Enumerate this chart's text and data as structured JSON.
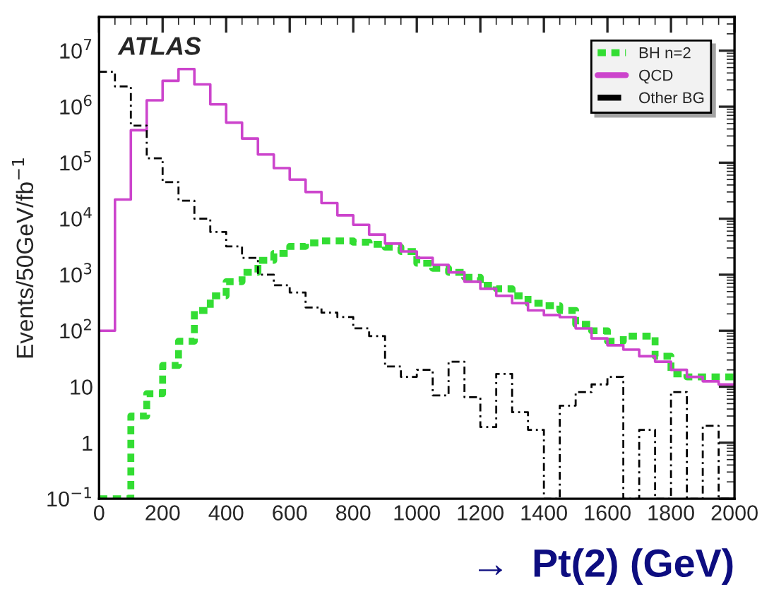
{
  "chart_data": {
    "type": "histogram",
    "xlabel": "→  Pt(2) (GeV)",
    "ylabel": "Events/50GeV/fb$^{−1}$",
    "annotations": [
      "ATLAS"
    ],
    "bins": [
      0,
      50,
      100,
      150,
      200,
      250,
      300,
      350,
      400,
      450,
      500,
      550,
      600,
      650,
      700,
      750,
      800,
      850,
      900,
      950,
      1000,
      1050,
      1100,
      1150,
      1200,
      1250,
      1300,
      1350,
      1400,
      1450,
      1500,
      1550,
      1600,
      1650,
      1700,
      1750,
      1800,
      1850,
      1900,
      1950,
      2000
    ],
    "series": [
      {
        "name": "BH n=2",
        "color": "#33dd33",
        "line_style": "dotted",
        "values": [
          0.1,
          0.1,
          3,
          7.5,
          24,
          65,
          230,
          420,
          750,
          1100,
          1800,
          2400,
          3200,
          3700,
          4000,
          4000,
          3800,
          3500,
          3100,
          2600,
          1600,
          1300,
          1100,
          900,
          650,
          560,
          420,
          310,
          280,
          230,
          130,
          100,
          65,
          80,
          80,
          35,
          17,
          15,
          15,
          15
        ]
      },
      {
        "name": "QCD",
        "color": "#cc44cc",
        "line_style": "solid",
        "values": [
          100,
          22000,
          380000,
          1300000,
          2900000,
          4700000,
          2500000,
          1100000,
          520000,
          270000,
          140000,
          80000,
          50000,
          30000,
          19000,
          11500,
          7800,
          5200,
          3600,
          2600,
          2000,
          1500,
          1100,
          750,
          560,
          420,
          310,
          230,
          190,
          175,
          110,
          73,
          55,
          46,
          35,
          28,
          20,
          15,
          12.5,
          11
        ]
      },
      {
        "name": "Other BG",
        "color": "#000000",
        "line_style": "dashed",
        "values": [
          4200000,
          2300000,
          460000,
          120000,
          45000,
          21000,
          10000,
          5800,
          3200,
          2000,
          1000,
          650,
          480,
          260,
          210,
          175,
          110,
          80,
          23,
          15,
          20,
          7,
          28,
          6.5,
          1.9,
          17,
          3.5,
          1.7,
          0.1,
          4.6,
          8,
          11,
          15,
          0.1,
          1.7,
          0.1,
          8,
          0.1,
          2,
          0.1
        ]
      }
    ],
    "xlim": [
      0,
      2000
    ],
    "xticks": [
      0,
      200,
      400,
      600,
      800,
      1000,
      1200,
      1400,
      1600,
      1800,
      2000
    ],
    "log": true,
    "ylim": [
      0.1,
      40000000
    ],
    "yticks": [
      {
        "value": 0.1,
        "label": "10$^{−1}$"
      },
      1,
      10,
      {
        "value": 100,
        "label": "10$^{2}$"
      },
      {
        "value": 1000,
        "label": "10$^{3}$"
      },
      {
        "value": 10000,
        "label": "10$^{4}$"
      },
      {
        "value": 100000,
        "label": "10$^{5}$"
      },
      {
        "value": 1000000,
        "label": "10$^{6}$"
      },
      {
        "value": 10000000,
        "label": "10$^{7}$"
      }
    ],
    "grid": false,
    "legend": "top right"
  }
}
